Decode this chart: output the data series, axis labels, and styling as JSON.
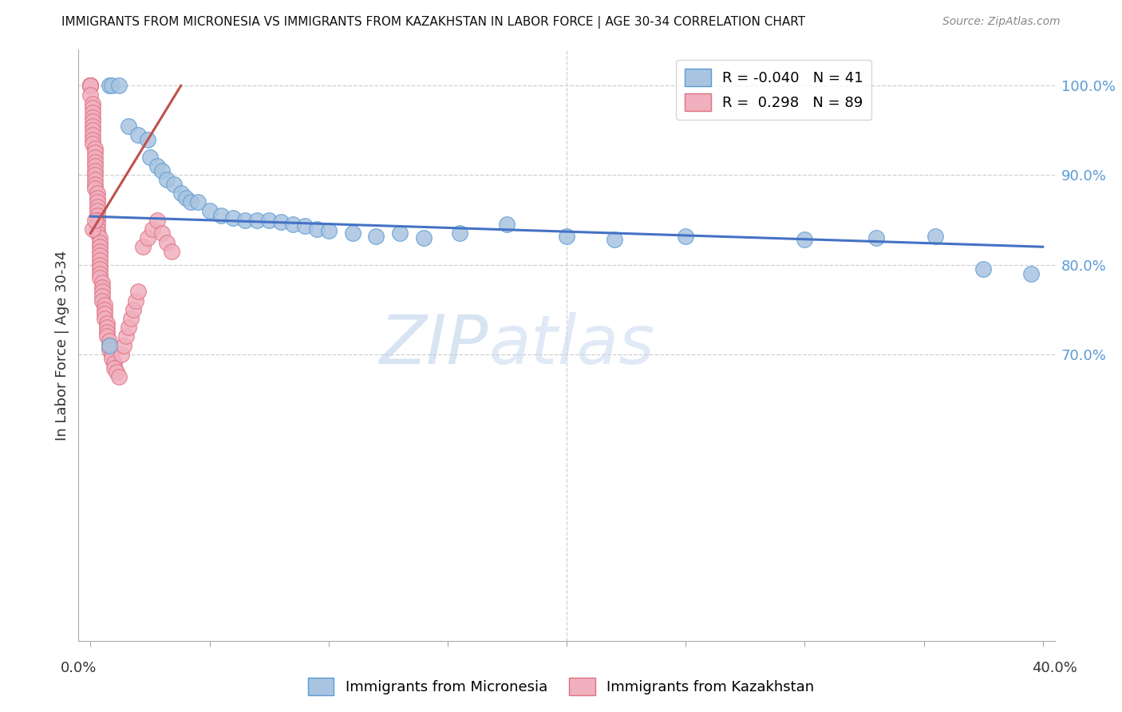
{
  "title": "IMMIGRANTS FROM MICRONESIA VS IMMIGRANTS FROM KAZAKHSTAN IN LABOR FORCE | AGE 30-34 CORRELATION CHART",
  "source": "Source: ZipAtlas.com",
  "ylabel": "In Labor Force | Age 30-34",
  "legend_blue_r": "-0.040",
  "legend_blue_n": "41",
  "legend_pink_r": "0.298",
  "legend_pink_n": "89",
  "legend_label_blue": "Immigrants from Micronesia",
  "legend_label_pink": "Immigrants from Kazakhstan",
  "watermark_zip": "ZIP",
  "watermark_atlas": "atlas",
  "blue_scatter_color": "#a8c4e0",
  "pink_scatter_color": "#f0b0be",
  "blue_edge_color": "#5b9bd5",
  "pink_edge_color": "#e07080",
  "blue_line_color": "#4472c4",
  "pink_line_color": "#c0504d",
  "right_tick_color": "#5b9bd5",
  "grid_color": "#d0d0d0",
  "ylabel_color": "#333333",
  "title_color": "#111111",
  "source_color": "#888888",
  "xmin": 0.0,
  "xmax": 0.4,
  "ymin": 0.38,
  "ymax": 1.04,
  "right_yticks": [
    1.0,
    0.9,
    0.8,
    0.7
  ],
  "right_yticklabels": [
    "100.0%",
    "90.0%",
    "80.0%",
    "70.0%"
  ],
  "blue_line_x": [
    0.0,
    0.4
  ],
  "blue_line_y": [
    0.854,
    0.82
  ],
  "pink_line_x": [
    0.0,
    0.038
  ],
  "pink_line_y": [
    0.835,
    1.0
  ],
  "micro_x": [
    0.008,
    0.009,
    0.012,
    0.016,
    0.02,
    0.024,
    0.025,
    0.028,
    0.03,
    0.032,
    0.035,
    0.038,
    0.04,
    0.042,
    0.045,
    0.05,
    0.055,
    0.06,
    0.065,
    0.07,
    0.075,
    0.08,
    0.085,
    0.09,
    0.095,
    0.1,
    0.11,
    0.12,
    0.13,
    0.14,
    0.155,
    0.175,
    0.2,
    0.22,
    0.25,
    0.3,
    0.33,
    0.355,
    0.375,
    0.395,
    0.008
  ],
  "micro_y": [
    1.0,
    1.0,
    1.0,
    0.955,
    0.945,
    0.94,
    0.92,
    0.91,
    0.905,
    0.895,
    0.89,
    0.88,
    0.875,
    0.87,
    0.87,
    0.86,
    0.855,
    0.852,
    0.85,
    0.85,
    0.85,
    0.848,
    0.845,
    0.843,
    0.84,
    0.838,
    0.835,
    0.832,
    0.835,
    0.83,
    0.835,
    0.845,
    0.832,
    0.828,
    0.832,
    0.828,
    0.83,
    0.832,
    0.795,
    0.79,
    0.71
  ],
  "kaz_x": [
    0.0,
    0.0,
    0.0,
    0.0,
    0.0,
    0.0,
    0.0,
    0.0,
    0.0,
    0.0,
    0.001,
    0.001,
    0.001,
    0.001,
    0.001,
    0.001,
    0.001,
    0.001,
    0.001,
    0.001,
    0.002,
    0.002,
    0.002,
    0.002,
    0.002,
    0.002,
    0.002,
    0.002,
    0.002,
    0.002,
    0.003,
    0.003,
    0.003,
    0.003,
    0.003,
    0.003,
    0.003,
    0.003,
    0.003,
    0.003,
    0.004,
    0.004,
    0.004,
    0.004,
    0.004,
    0.004,
    0.004,
    0.004,
    0.004,
    0.004,
    0.005,
    0.005,
    0.005,
    0.005,
    0.005,
    0.006,
    0.006,
    0.006,
    0.006,
    0.007,
    0.007,
    0.007,
    0.007,
    0.008,
    0.008,
    0.008,
    0.009,
    0.009,
    0.01,
    0.01,
    0.011,
    0.012,
    0.013,
    0.014,
    0.015,
    0.016,
    0.017,
    0.018,
    0.019,
    0.02,
    0.022,
    0.024,
    0.026,
    0.028,
    0.03,
    0.032,
    0.034,
    0.001,
    0.002
  ],
  "kaz_y": [
    1.0,
    1.0,
    1.0,
    1.0,
    1.0,
    1.0,
    1.0,
    1.0,
    1.0,
    0.99,
    0.98,
    0.975,
    0.97,
    0.965,
    0.96,
    0.955,
    0.95,
    0.945,
    0.94,
    0.935,
    0.93,
    0.925,
    0.92,
    0.915,
    0.91,
    0.905,
    0.9,
    0.895,
    0.89,
    0.885,
    0.88,
    0.875,
    0.87,
    0.865,
    0.86,
    0.855,
    0.85,
    0.845,
    0.84,
    0.835,
    0.83,
    0.825,
    0.82,
    0.815,
    0.81,
    0.805,
    0.8,
    0.795,
    0.79,
    0.785,
    0.78,
    0.775,
    0.77,
    0.765,
    0.76,
    0.755,
    0.75,
    0.745,
    0.74,
    0.735,
    0.73,
    0.725,
    0.72,
    0.715,
    0.71,
    0.705,
    0.7,
    0.695,
    0.69,
    0.685,
    0.68,
    0.675,
    0.7,
    0.71,
    0.72,
    0.73,
    0.74,
    0.75,
    0.76,
    0.77,
    0.82,
    0.83,
    0.84,
    0.85,
    0.835,
    0.825,
    0.815,
    0.84,
    0.85
  ]
}
